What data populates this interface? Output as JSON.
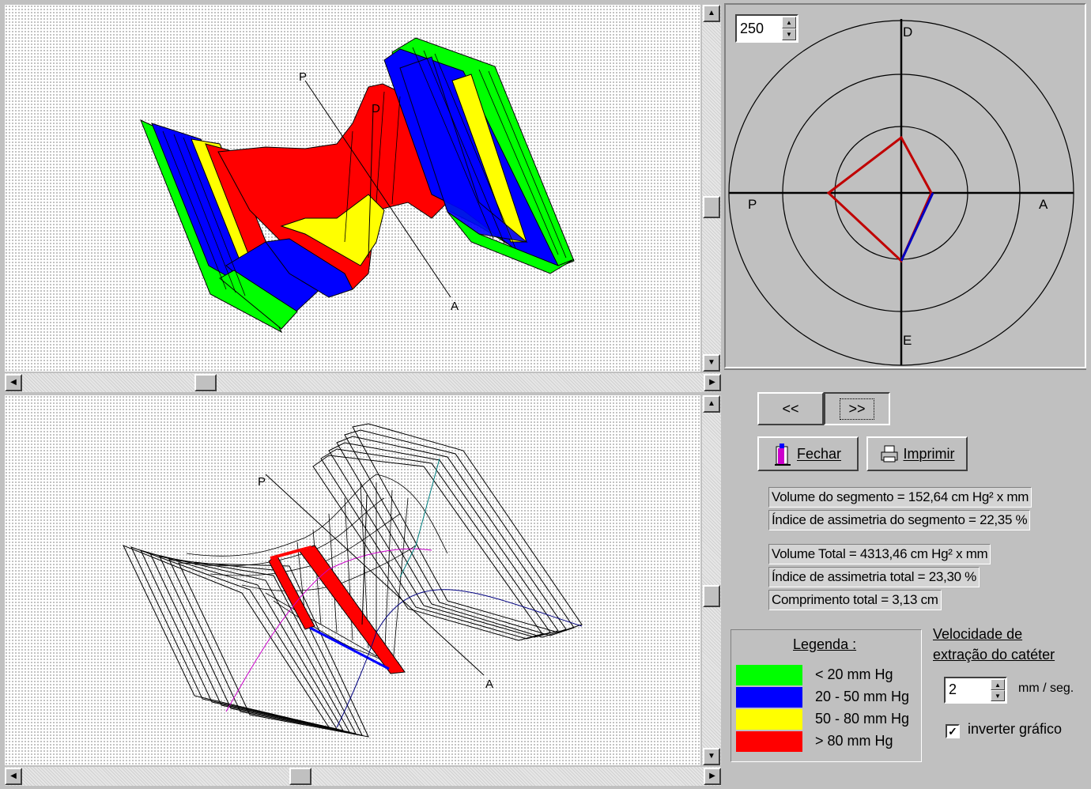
{
  "top_view": {
    "axis_labels": {
      "p": "P",
      "a": "A",
      "d": "D"
    }
  },
  "bottom_view": {
    "axis_labels": {
      "p": "P",
      "a": "A"
    }
  },
  "polar": {
    "scale_value": "250",
    "labels": {
      "top": "D",
      "bottom": "E",
      "left": "P",
      "right": "A"
    }
  },
  "nav": {
    "prev_label": "<<",
    "next_label": ">>"
  },
  "buttons": {
    "close_label": "Fechar",
    "print_label": "Imprimir"
  },
  "stats": {
    "segment_volume": "Volume do segmento = 152,64 cm Hg² x mm",
    "segment_asymmetry": "Índice de assimetria do segmento = 22,35 %",
    "total_volume": "Volume Total = 4313,46 cm Hg² x mm",
    "total_asymmetry": "Índice de assimetria total = 23,30 %",
    "total_length": "Comprimento total = 3,13 cm"
  },
  "legend": {
    "title": "Legenda :",
    "items": [
      {
        "label": "< 20 mm Hg",
        "color": "#00ff00"
      },
      {
        "label": "20 - 50 mm Hg",
        "color": "#0000ff"
      },
      {
        "label": "50 - 80 mm Hg",
        "color": "#ffff00"
      },
      {
        "label": "> 80 mm Hg",
        "color": "#ff0000"
      }
    ]
  },
  "speed": {
    "title_line1": "Velocidade de",
    "title_line2": "extração do catéter",
    "value": "2",
    "unit": "mm / seg.",
    "invert_label": "inverter gráfico",
    "invert_checked": true
  },
  "colors": {
    "green": "#00ff00",
    "blue": "#0000ff",
    "yellow": "#ffff00",
    "red": "#ff0000",
    "polar_red": "#c00000",
    "polar_blue": "#0000c0"
  }
}
